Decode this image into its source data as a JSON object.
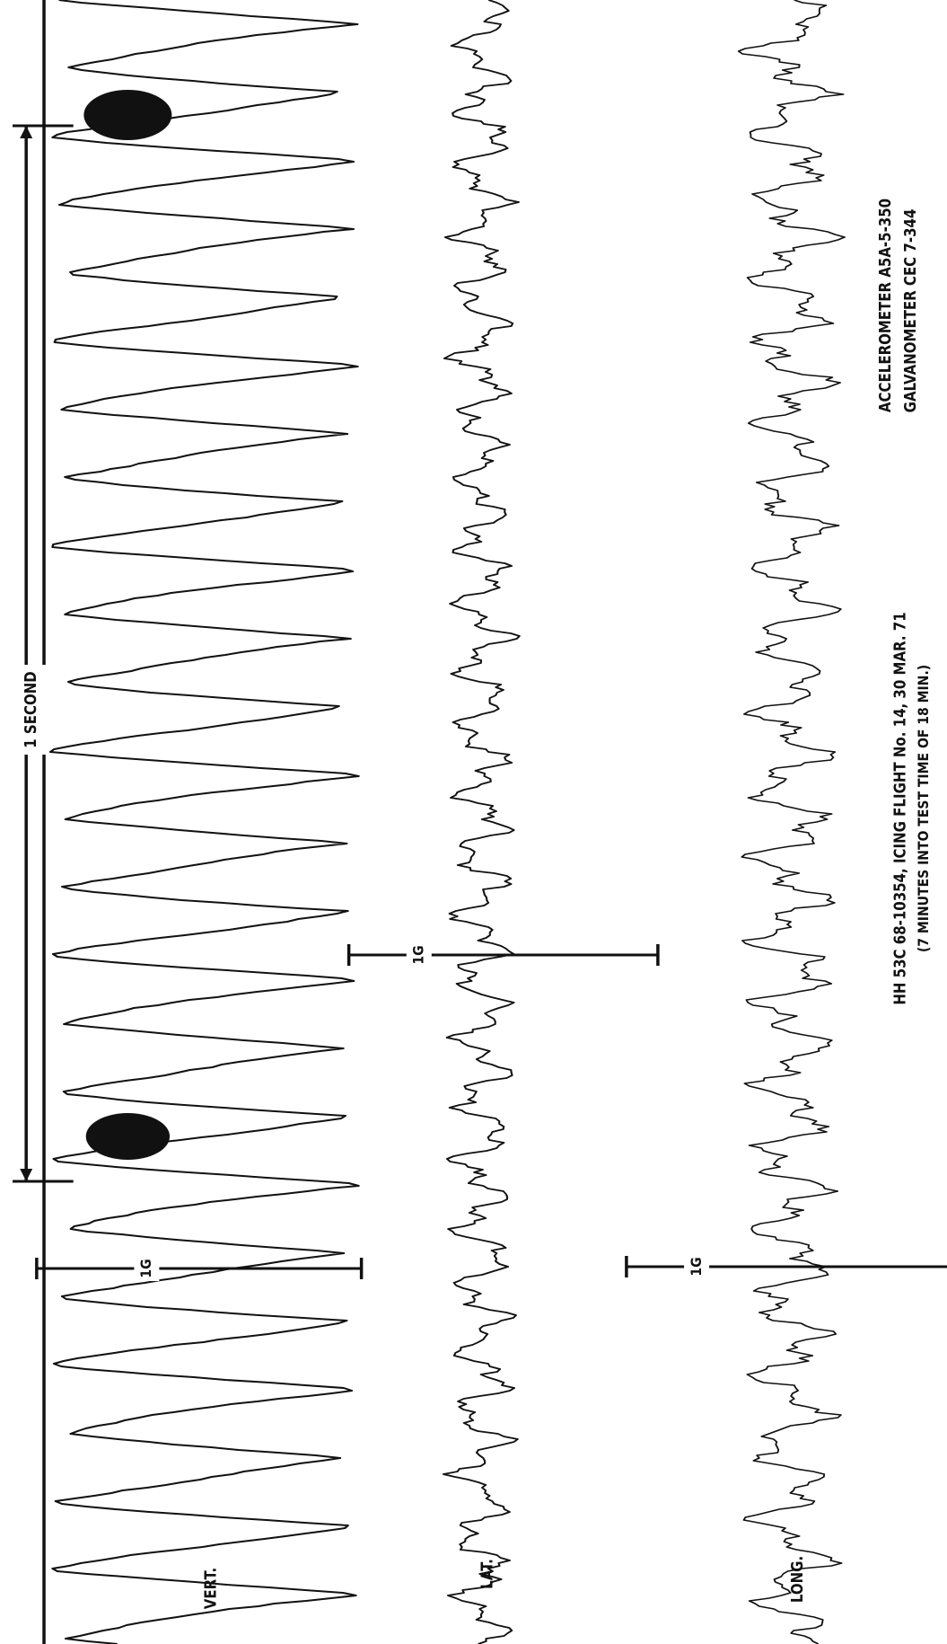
{
  "labels": {
    "timing": "1 SECOND",
    "vert_scale": "1G",
    "lat_scale": "1G",
    "long_scale": "1G",
    "vert": "VERT.",
    "lat": "LAT.",
    "long": "LONG."
  },
  "notes": {
    "accelerometer": "ACCELEROMETER A5A-5-350",
    "galvanometer": "GALVANOMETER CEC 7-344",
    "flight": "HH 53C 68-10354, ICING FLIGHT No. 14, 30 MAR. 71",
    "time": "(7 MINUTES INTO TEST TIME OF 18 MIN.)"
  }
}
